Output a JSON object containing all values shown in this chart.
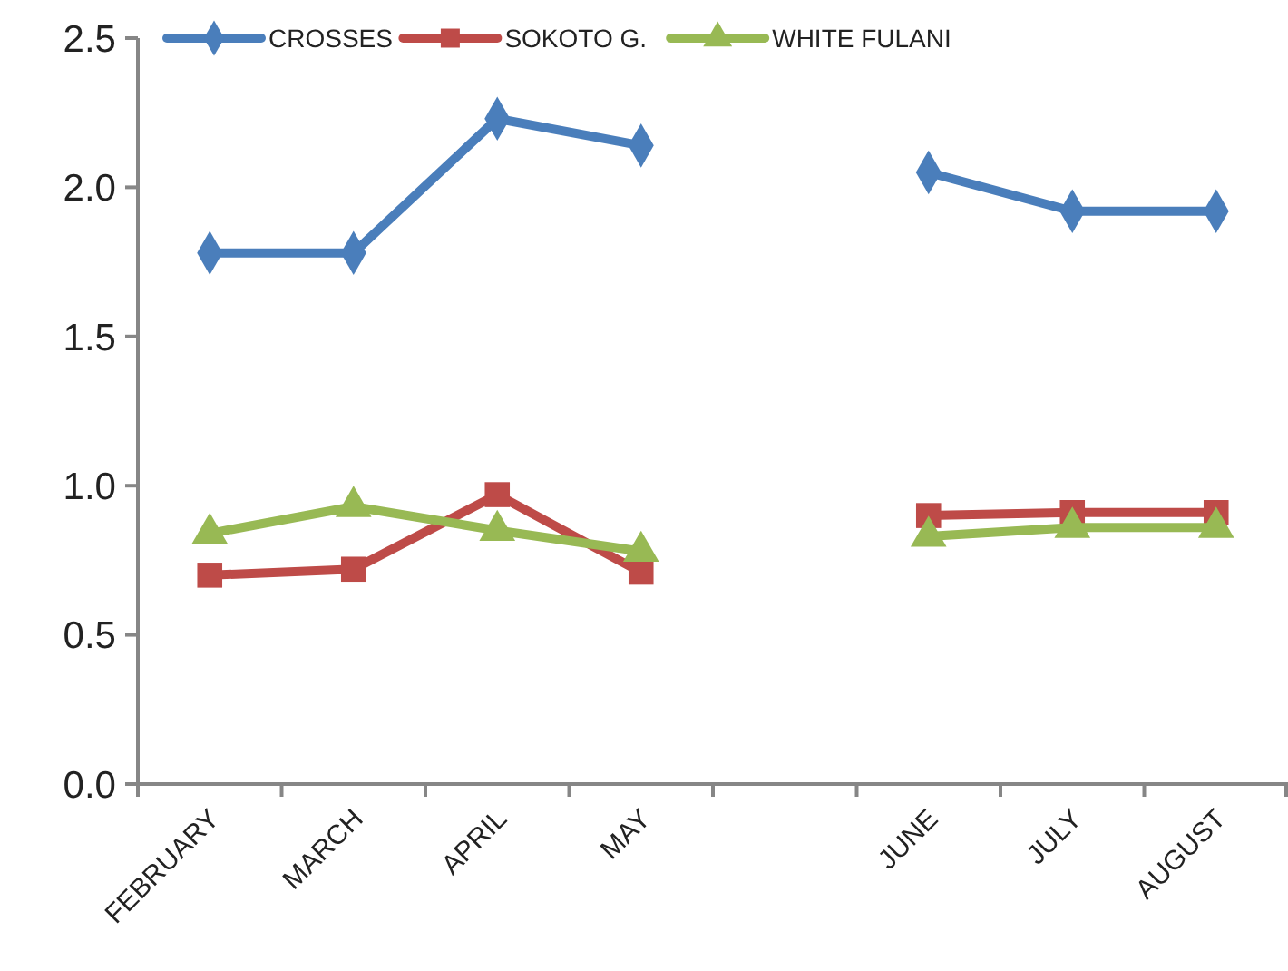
{
  "chart_data": {
    "type": "line",
    "categories": [
      "FEBRUARY",
      "MARCH",
      "APRIL",
      "MAY",
      null,
      "JUNE",
      "JULY",
      "AUGUST"
    ],
    "series": [
      {
        "name": "CROSSES",
        "color": "#4a7ebb",
        "marker": "diamond",
        "values": [
          1.78,
          1.78,
          2.23,
          2.14,
          null,
          2.05,
          1.92,
          1.92
        ]
      },
      {
        "name": "SOKOTO G.",
        "color": "#be4b48",
        "marker": "square",
        "values": [
          0.7,
          0.72,
          0.97,
          0.71,
          null,
          0.9,
          0.91,
          0.91
        ]
      },
      {
        "name": "WHITE FULANI",
        "color": "#98b954",
        "marker": "triangle",
        "values": [
          0.84,
          0.93,
          0.85,
          0.78,
          null,
          0.83,
          0.86,
          0.86
        ]
      }
    ],
    "ylim": [
      0,
      2.5
    ],
    "yticks": [
      {
        "value": 0,
        "label": "0.0"
      },
      {
        "value": 0.5,
        "label": "0.5"
      },
      {
        "value": 1,
        "label": "1.0"
      },
      {
        "value": 1.5,
        "label": "1.5"
      },
      {
        "value": 2,
        "label": "2.0"
      },
      {
        "value": 2.5,
        "label": "2.5"
      }
    ],
    "grid": false,
    "legend": "top left"
  }
}
